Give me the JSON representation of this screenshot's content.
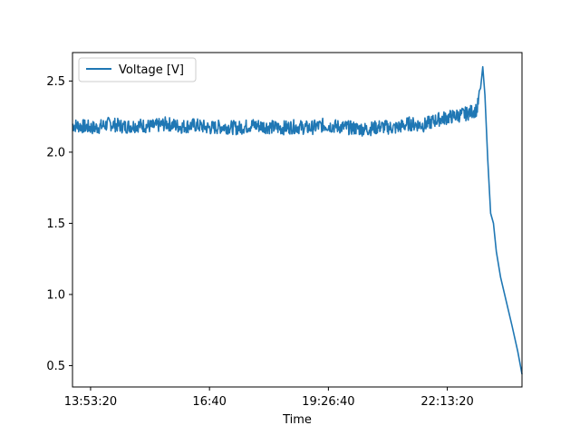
{
  "chart_data": {
    "type": "line",
    "title": "",
    "xlabel": "Time",
    "ylabel": "",
    "x_tick_labels": [
      "13:53:20",
      "16:40",
      "19:26:40",
      "22:13:20"
    ],
    "x_tick_values": [
      "13:53:20",
      "16:40:00",
      "19:26:40",
      "22:13:20"
    ],
    "xlim": [
      "13:28:00",
      "23:58:00"
    ],
    "ylim": [
      0.35,
      2.7
    ],
    "y_ticks": [
      0.5,
      1.0,
      1.5,
      2.0,
      2.5
    ],
    "y_tick_labels": [
      "0.5",
      "1.0",
      "1.5",
      "2.0",
      "2.5"
    ],
    "grid": false,
    "legend_position": "top-left",
    "series": [
      {
        "name": "Voltage [V]",
        "color": "#1f77b4",
        "x": [
          "13:28:00",
          "13:45:00",
          "14:00:00",
          "14:20:00",
          "14:40:00",
          "15:00:00",
          "15:20:00",
          "15:40:00",
          "16:00:00",
          "16:20:00",
          "16:40:00",
          "17:00:00",
          "17:20:00",
          "17:40:00",
          "18:00:00",
          "18:20:00",
          "18:40:00",
          "19:00:00",
          "19:20:00",
          "19:40:00",
          "20:00:00",
          "20:20:00",
          "20:40:00",
          "21:00:00",
          "21:20:00",
          "21:40:00",
          "22:00:00",
          "22:20:00",
          "22:40:00",
          "22:55:00",
          "23:00:00",
          "23:03:00",
          "23:06:00",
          "23:10:00",
          "23:14:00",
          "23:18:00",
          "23:22:00",
          "23:28:00",
          "23:36:00",
          "23:44:00",
          "23:52:00",
          "23:58:00"
        ],
        "y": [
          2.19,
          2.18,
          2.17,
          2.2,
          2.18,
          2.19,
          2.18,
          2.2,
          2.18,
          2.19,
          2.17,
          2.18,
          2.17,
          2.19,
          2.18,
          2.17,
          2.18,
          2.17,
          2.19,
          2.18,
          2.17,
          2.16,
          2.18,
          2.17,
          2.2,
          2.19,
          2.23,
          2.25,
          2.27,
          2.3,
          2.45,
          2.6,
          2.4,
          1.95,
          1.57,
          1.5,
          1.3,
          1.12,
          0.95,
          0.78,
          0.6,
          0.44
        ]
      }
    ]
  }
}
